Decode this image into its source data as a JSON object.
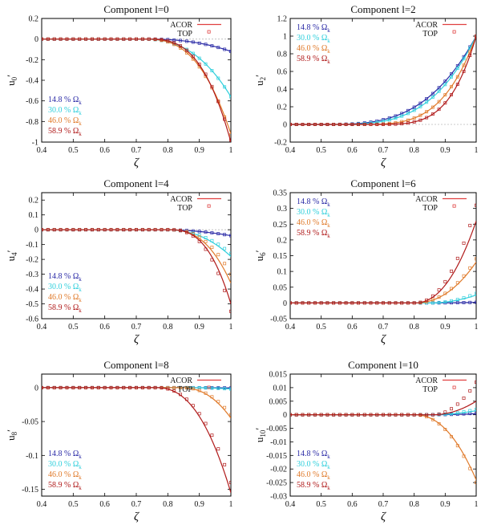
{
  "chart_data": [
    {
      "type": "line",
      "title": "Component l=0",
      "xlabel": "ζ",
      "ylabel": "u0'",
      "ylabel_main": "u",
      "ylabel_sub": "0",
      "ylabel_prime": "′",
      "xlim": [
        0.4,
        1.0
      ],
      "ylim": [
        -1.0,
        0.2
      ],
      "xticks": [
        "0.4",
        "0.5",
        "0.6",
        "0.7",
        "0.8",
        "0.9",
        "1"
      ],
      "yticks": [
        "0.2",
        "0",
        "-0.2",
        "-0.4",
        "-0.6",
        "-0.8",
        "-1"
      ],
      "xtick_values": [
        0.4,
        0.5,
        0.6,
        0.7,
        0.8,
        0.9,
        1.0
      ],
      "ytick_values": [
        0.2,
        0,
        -0.2,
        -0.4,
        -0.6,
        -0.8,
        -1.0
      ],
      "zero_line": true,
      "legend": {
        "position": "top-right",
        "line_label": "ACOR",
        "marker_label": "TOP"
      },
      "series_label_position": "lower-left",
      "series": [
        {
          "name": "14.8 % Ωk",
          "value_label": "14.8 % ",
          "omega_label": "Ω",
          "omega_sub": "k",
          "color": "#2a2aa6",
          "end": -0.12,
          "start": 0.72,
          "power": 2.5,
          "top_end": -0.12
        },
        {
          "name": "30.0 % Ωk",
          "value_label": "30.0 % ",
          "omega_label": "Ω",
          "omega_sub": "k",
          "color": "#2fcfdc",
          "end": -0.56,
          "start": 0.71,
          "power": 2.6,
          "top_end": -0.56
        },
        {
          "name": "46.0 % Ωk",
          "value_label": "46.0 % ",
          "omega_label": "Ω",
          "omega_sub": "k",
          "color": "#e07a2a",
          "end": -0.92,
          "start": 0.72,
          "power": 2.8,
          "top_end": -0.93
        },
        {
          "name": "58.9 % Ωk",
          "value_label": "58.9 % ",
          "omega_label": "Ω",
          "omega_sub": "k",
          "color": "#b01a1a",
          "end": -1.0,
          "start": 0.73,
          "power": 3.0,
          "top_end": -0.98
        }
      ]
    },
    {
      "type": "line",
      "title": "Component l=2",
      "xlabel": "ζ",
      "ylabel": "u2'",
      "ylabel_main": "u",
      "ylabel_sub": "2",
      "ylabel_prime": "′",
      "xlim": [
        0.4,
        1.0
      ],
      "ylim": [
        -0.2,
        1.2
      ],
      "xticks": [
        "0.4",
        "0.5",
        "0.6",
        "0.7",
        "0.8",
        "0.9",
        "1"
      ],
      "yticks": [
        "1.2",
        "1",
        "0.8",
        "0.6",
        "0.4",
        "0.2",
        "0",
        "-0.2"
      ],
      "xtick_values": [
        0.4,
        0.5,
        0.6,
        0.7,
        0.8,
        0.9,
        1.0
      ],
      "ytick_values": [
        1.2,
        1.0,
        0.8,
        0.6,
        0.4,
        0.2,
        0,
        -0.2
      ],
      "zero_line": true,
      "legend": {
        "position": "top-right",
        "line_label": "ACOR",
        "marker_label": "TOP"
      },
      "series_label_position": "upper-left",
      "series": [
        {
          "name": "14.8 % Ωk",
          "value_label": "14.8 % ",
          "omega_label": "Ω",
          "omega_sub": "k",
          "color": "#2a2aa6",
          "end": 1.0,
          "start": 0.5,
          "power": 3.2,
          "top_end": 1.0
        },
        {
          "name": "30.0 % Ωk",
          "value_label": "30.0 % ",
          "omega_label": "Ω",
          "omega_sub": "k",
          "color": "#2fcfdc",
          "end": 1.0,
          "start": 0.52,
          "power": 3.4,
          "top_end": 1.0
        },
        {
          "name": "46.0 % Ωk",
          "value_label": "46.0 % ",
          "omega_label": "Ω",
          "omega_sub": "k",
          "color": "#e07a2a",
          "end": 1.0,
          "start": 0.6,
          "power": 3.8,
          "top_end": 1.0
        },
        {
          "name": "58.9 % Ωk",
          "value_label": "58.9 % ",
          "omega_label": "Ω",
          "omega_sub": "k",
          "color": "#b01a1a",
          "end": 1.0,
          "start": 0.65,
          "power": 4.2,
          "top_end": 1.0
        }
      ]
    },
    {
      "type": "line",
      "title": "Component l=4",
      "xlabel": "ζ",
      "ylabel": "u4'",
      "ylabel_main": "u",
      "ylabel_sub": "4",
      "ylabel_prime": "′",
      "xlim": [
        0.4,
        1.0
      ],
      "ylim": [
        -0.6,
        0.25
      ],
      "xticks": [
        "0.4",
        "0.5",
        "0.6",
        "0.7",
        "0.8",
        "0.9",
        "1"
      ],
      "yticks": [
        "0.2",
        "0.1",
        "0",
        "-0.1",
        "-0.2",
        "-0.3",
        "-0.4",
        "-0.5",
        "-0.6"
      ],
      "xtick_values": [
        0.4,
        0.5,
        0.6,
        0.7,
        0.8,
        0.9,
        1.0
      ],
      "ytick_values": [
        0.2,
        0.1,
        0,
        -0.1,
        -0.2,
        -0.3,
        -0.4,
        -0.5,
        -0.6
      ],
      "zero_line": true,
      "legend": {
        "position": "top-right",
        "line_label": "ACOR",
        "marker_label": "TOP"
      },
      "series_label_position": "lower-left",
      "series": [
        {
          "name": "14.8 % Ωk",
          "value_label": "14.8 % ",
          "omega_label": "Ω",
          "omega_sub": "k",
          "color": "#2a2aa6",
          "end": -0.04,
          "start": 0.78,
          "power": 2.0,
          "top_end": -0.04
        },
        {
          "name": "30.0 % Ωk",
          "value_label": "30.0 % ",
          "omega_label": "Ω",
          "omega_sub": "k",
          "color": "#2fcfdc",
          "end": -0.18,
          "start": 0.79,
          "power": 2.3,
          "top_end": -0.16
        },
        {
          "name": "46.0 % Ωk",
          "value_label": "46.0 % ",
          "omega_label": "Ω",
          "omega_sub": "k",
          "color": "#e07a2a",
          "end": -0.36,
          "start": 0.8,
          "power": 2.6,
          "top_end": -0.3
        },
        {
          "name": "58.9 % Ωk",
          "value_label": "58.9 % ",
          "omega_label": "Ω",
          "omega_sub": "k",
          "color": "#b01a1a",
          "end": -0.5,
          "start": 0.8,
          "power": 2.8,
          "top_end": -0.55
        }
      ]
    },
    {
      "type": "line",
      "title": "Component l=6",
      "xlabel": "ζ",
      "ylabel": "u6'",
      "ylabel_main": "u",
      "ylabel_sub": "6",
      "ylabel_prime": "′",
      "xlim": [
        0.4,
        1.0
      ],
      "ylim": [
        -0.05,
        0.35
      ],
      "xticks": [
        "0.4",
        "0.5",
        "0.6",
        "0.7",
        "0.8",
        "0.9",
        "1"
      ],
      "yticks": [
        "0.35",
        "0.3",
        "0.25",
        "0.2",
        "0.15",
        "0.1",
        "0.05",
        "0",
        "-0.05"
      ],
      "xtick_values": [
        0.4,
        0.5,
        0.6,
        0.7,
        0.8,
        0.9,
        1.0
      ],
      "ytick_values": [
        0.35,
        0.3,
        0.25,
        0.2,
        0.15,
        0.1,
        0.05,
        0,
        -0.05
      ],
      "zero_line": true,
      "legend": {
        "position": "top-right",
        "line_label": "ACOR",
        "marker_label": "TOP"
      },
      "series_label_position": "upper-left",
      "series": [
        {
          "name": "14.8 % Ωk",
          "value_label": "14.8 % ",
          "omega_label": "Ω",
          "omega_sub": "k",
          "color": "#2a2aa6",
          "end": 0.002,
          "start": 0.85,
          "power": 2.0,
          "top_end": 0.002
        },
        {
          "name": "30.0 % Ωk",
          "value_label": "30.0 % ",
          "omega_label": "Ω",
          "omega_sub": "k",
          "color": "#2fcfdc",
          "end": 0.025,
          "start": 0.85,
          "power": 2.0,
          "top_end": 0.03
        },
        {
          "name": "46.0 % Ωk",
          "value_label": "46.0 % ",
          "omega_label": "Ω",
          "omega_sub": "k",
          "color": "#e07a2a",
          "end": 0.13,
          "start": 0.8,
          "power": 2.2,
          "top_end": 0.14
        },
        {
          "name": "58.9 % Ωk",
          "value_label": "58.9 % ",
          "omega_label": "Ω",
          "omega_sub": "k",
          "color": "#b01a1a",
          "end": 0.26,
          "start": 0.8,
          "power": 2.2,
          "top_end": 0.31
        }
      ]
    },
    {
      "type": "line",
      "title": "Component l=8",
      "xlabel": "ζ",
      "ylabel": "u8'",
      "ylabel_main": "u",
      "ylabel_sub": "8",
      "ylabel_prime": "′",
      "xlim": [
        0.4,
        1.0
      ],
      "ylim": [
        -0.16,
        0.02
      ],
      "xticks": [
        "0.4",
        "0.5",
        "0.6",
        "0.7",
        "0.8",
        "0.9",
        "1"
      ],
      "yticks": [
        "0",
        "-0.05",
        "-0.1",
        "-0.15"
      ],
      "xtick_values": [
        0.4,
        0.5,
        0.6,
        0.7,
        0.8,
        0.9,
        1.0
      ],
      "ytick_values": [
        0,
        -0.05,
        -0.1,
        -0.15
      ],
      "zero_line": true,
      "legend": {
        "position": "top-right",
        "line_label": "ACOR",
        "marker_label": "TOP"
      },
      "series_label_position": "lower-left",
      "series": [
        {
          "name": "14.8 % Ωk",
          "value_label": "14.8 % ",
          "omega_label": "Ω",
          "omega_sub": "k",
          "color": "#2a2aa6",
          "end": -0.0005,
          "start": 0.85,
          "power": 2.0,
          "top_end": -0.0005
        },
        {
          "name": "30.0 % Ωk",
          "value_label": "30.0 % ",
          "omega_label": "Ω",
          "omega_sub": "k",
          "color": "#2fcfdc",
          "end": -0.002,
          "start": 0.85,
          "power": 2.0,
          "top_end": -0.002
        },
        {
          "name": "46.0 % Ωk",
          "value_label": "46.0 % ",
          "omega_label": "Ω",
          "omega_sub": "k",
          "color": "#e07a2a",
          "end": -0.045,
          "start": 0.84,
          "power": 2.3,
          "top_end": -0.04
        },
        {
          "name": "58.9 % Ωk",
          "value_label": "58.9 % ",
          "omega_label": "Ω",
          "omega_sub": "k",
          "color": "#b01a1a",
          "end": -0.155,
          "start": 0.76,
          "power": 2.4,
          "top_end": -0.14
        }
      ]
    },
    {
      "type": "line",
      "title": "Component l=10",
      "xlabel": "ζ",
      "ylabel": "u10'",
      "ylabel_main": "u",
      "ylabel_sub": "10",
      "ylabel_prime": "′",
      "xlim": [
        0.4,
        1.0
      ],
      "ylim": [
        -0.03,
        0.015
      ],
      "xticks": [
        "0.4",
        "0.5",
        "0.6",
        "0.7",
        "0.8",
        "0.9",
        "1"
      ],
      "yticks": [
        "0.015",
        "0.01",
        "0.005",
        "0",
        "-0.005",
        "-0.01",
        "-0.015",
        "-0.02",
        "-0.025",
        "-0.03"
      ],
      "xtick_values": [
        0.4,
        0.5,
        0.6,
        0.7,
        0.8,
        0.9,
        1.0
      ],
      "ytick_values": [
        0.015,
        0.01,
        0.005,
        0,
        -0.005,
        -0.01,
        -0.015,
        -0.02,
        -0.025,
        -0.03
      ],
      "zero_line": true,
      "legend": {
        "position": "top-right",
        "line_label": "ACOR",
        "marker_label": "TOP"
      },
      "series_label_position": "lower-left",
      "series": [
        {
          "name": "14.8 % Ωk",
          "value_label": "14.8 % ",
          "omega_label": "Ω",
          "omega_sub": "k",
          "color": "#2a2aa6",
          "end": 0.0004,
          "start": 0.85,
          "power": 2.0,
          "top_end": 0.0006
        },
        {
          "name": "30.0 % Ωk",
          "value_label": "30.0 % ",
          "omega_label": "Ω",
          "omega_sub": "k",
          "color": "#2fcfdc",
          "end": 0.0015,
          "start": 0.85,
          "power": 2.0,
          "top_end": 0.002
        },
        {
          "name": "46.0 % Ωk",
          "value_label": "46.0 % ",
          "omega_label": "Ω",
          "omega_sub": "k",
          "color": "#e07a2a",
          "end": -0.024,
          "start": 0.8,
          "power": 2.2,
          "top_end": -0.025
        },
        {
          "name": "58.9 % Ωk",
          "value_label": "58.9 % ",
          "omega_label": "Ω",
          "omega_sub": "k",
          "color": "#b01a1a",
          "end": 0.005,
          "start": 0.86,
          "power": 2.0,
          "top_end": 0.012
        }
      ]
    }
  ]
}
